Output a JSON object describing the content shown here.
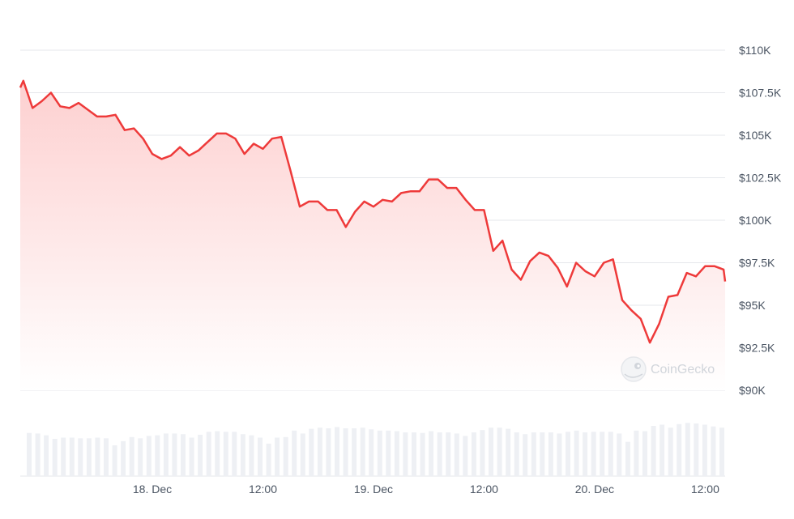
{
  "chart_data": {
    "type": "area",
    "title": "",
    "xlabel": "",
    "ylabel": "",
    "y_tick_labels": [
      "$90K",
      "$92.5K",
      "$95K",
      "$97.5K",
      "$100K",
      "$102.5K",
      "$105K",
      "$107.5K",
      "$110K"
    ],
    "y_ticks": [
      90000,
      92500,
      95000,
      97500,
      100000,
      102500,
      105000,
      107500,
      110000
    ],
    "ylim": [
      90000,
      110000
    ],
    "x_tick_labels": [
      "18. Dec",
      "12:00",
      "19. Dec",
      "12:00",
      "20. Dec",
      "12:00"
    ],
    "x_ticks": [
      "2024-12-18 00:00",
      "2024-12-18 12:00",
      "2024-12-19 00:00",
      "2024-12-19 12:00",
      "2024-12-20 00:00",
      "2024-12-20 12:00"
    ],
    "xlim": [
      "2024-12-17 09:40",
      "2024-12-20 14:10"
    ],
    "grid": true,
    "price_series": {
      "x": [
        "2024-12-17 09:40",
        "2024-12-17 10:00",
        "2024-12-17 11:00",
        "2024-12-17 12:00",
        "2024-12-17 13:00",
        "2024-12-17 14:00",
        "2024-12-17 15:00",
        "2024-12-17 16:00",
        "2024-12-17 17:00",
        "2024-12-17 18:00",
        "2024-12-17 19:00",
        "2024-12-17 20:00",
        "2024-12-17 21:00",
        "2024-12-17 22:00",
        "2024-12-17 23:00",
        "2024-12-18 00:00",
        "2024-12-18 01:00",
        "2024-12-18 02:00",
        "2024-12-18 03:00",
        "2024-12-18 04:00",
        "2024-12-18 05:00",
        "2024-12-18 06:00",
        "2024-12-18 07:00",
        "2024-12-18 08:00",
        "2024-12-18 09:00",
        "2024-12-18 10:00",
        "2024-12-18 11:00",
        "2024-12-18 12:00",
        "2024-12-18 13:00",
        "2024-12-18 14:00",
        "2024-12-18 15:00",
        "2024-12-18 16:00",
        "2024-12-18 17:00",
        "2024-12-18 18:00",
        "2024-12-18 19:00",
        "2024-12-18 20:00",
        "2024-12-18 21:00",
        "2024-12-18 22:00",
        "2024-12-18 23:00",
        "2024-12-19 00:00",
        "2024-12-19 01:00",
        "2024-12-19 02:00",
        "2024-12-19 03:00",
        "2024-12-19 04:00",
        "2024-12-19 05:00",
        "2024-12-19 06:00",
        "2024-12-19 07:00",
        "2024-12-19 08:00",
        "2024-12-19 09:00",
        "2024-12-19 10:00",
        "2024-12-19 11:00",
        "2024-12-19 12:00",
        "2024-12-19 13:00",
        "2024-12-19 14:00",
        "2024-12-19 15:00",
        "2024-12-19 16:00",
        "2024-12-19 17:00",
        "2024-12-19 18:00",
        "2024-12-19 19:00",
        "2024-12-19 20:00",
        "2024-12-19 21:00",
        "2024-12-19 22:00",
        "2024-12-19 23:00",
        "2024-12-20 00:00",
        "2024-12-20 01:00",
        "2024-12-20 02:00",
        "2024-12-20 03:00",
        "2024-12-20 04:00",
        "2024-12-20 05:00",
        "2024-12-20 06:00",
        "2024-12-20 07:00",
        "2024-12-20 08:00",
        "2024-12-20 09:00",
        "2024-12-20 10:00",
        "2024-12-20 11:00",
        "2024-12-20 12:00",
        "2024-12-20 13:00",
        "2024-12-20 14:00",
        "2024-12-20 14:10"
      ],
      "y": [
        107800,
        108200,
        106600,
        107000,
        107500,
        106700,
        106600,
        106900,
        106500,
        106100,
        106100,
        106200,
        105300,
        105400,
        104800,
        103900,
        103600,
        103800,
        104300,
        103800,
        104100,
        104600,
        105100,
        105100,
        104800,
        103900,
        104500,
        104200,
        104800,
        104900,
        102900,
        100800,
        101100,
        101100,
        100600,
        100600,
        99600,
        100500,
        101100,
        100800,
        101200,
        101100,
        101600,
        101700,
        101700,
        102400,
        102400,
        101900,
        101900,
        101200,
        100600,
        100600,
        98200,
        98800,
        97100,
        96500,
        97600,
        98100,
        97900,
        97200,
        96100,
        97500,
        97000,
        96700,
        97500,
        97700,
        95300,
        94700,
        94200,
        92800,
        93900,
        95500,
        95600,
        96900,
        96700,
        97300,
        97300,
        97100,
        96400
      ]
    },
    "volume_series": {
      "values": [
        0.73,
        0.72,
        0.69,
        0.63,
        0.65,
        0.65,
        0.64,
        0.64,
        0.65,
        0.64,
        0.52,
        0.59,
        0.66,
        0.64,
        0.68,
        0.69,
        0.72,
        0.72,
        0.71,
        0.65,
        0.7,
        0.75,
        0.76,
        0.75,
        0.75,
        0.71,
        0.69,
        0.65,
        0.55,
        0.65,
        0.66,
        0.77,
        0.72,
        0.8,
        0.82,
        0.81,
        0.83,
        0.81,
        0.81,
        0.82,
        0.79,
        0.77,
        0.77,
        0.76,
        0.74,
        0.74,
        0.73,
        0.76,
        0.74,
        0.74,
        0.72,
        0.68,
        0.74,
        0.78,
        0.82,
        0.82,
        0.8,
        0.74,
        0.71,
        0.74,
        0.74,
        0.74,
        0.72,
        0.75,
        0.77,
        0.74,
        0.75,
        0.75,
        0.75,
        0.72,
        0.58,
        0.77,
        0.76,
        0.85,
        0.87,
        0.82,
        0.88,
        0.9,
        0.89,
        0.87,
        0.84,
        0.82
      ]
    },
    "colors": {
      "line": "#ee3a3a",
      "fill_top": "#fdd0d0",
      "fill_bottom": "#ffffff",
      "grid": "#e5e7eb",
      "volume": "#eef0f4",
      "tick_text": "#4b5563"
    },
    "watermark": "CoinGecko",
    "watermark_icon": "gecko-logo-icon"
  }
}
